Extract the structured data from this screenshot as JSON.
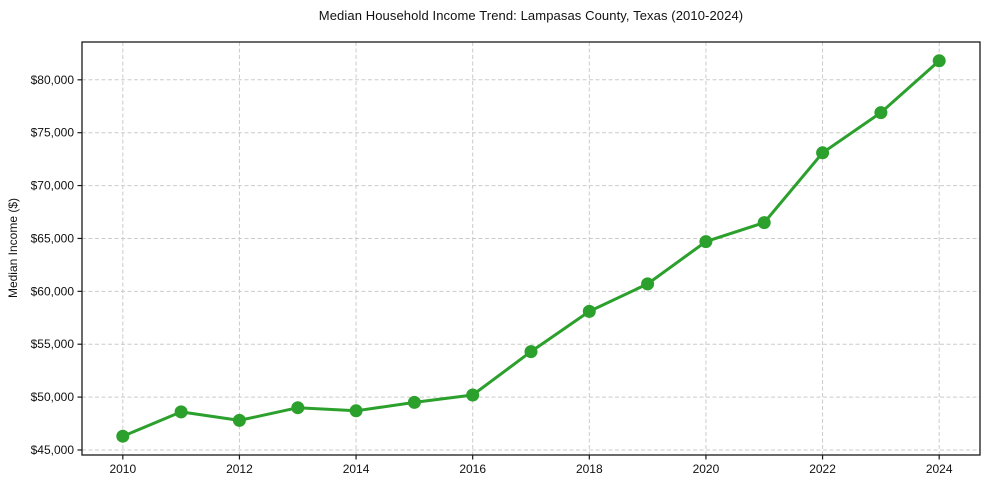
{
  "page": {
    "background": "#ffffff"
  },
  "chart_data": {
    "type": "line",
    "title": "Median Household Income Trend: Lampasas County, Texas (2010-2024)",
    "xlabel": "",
    "ylabel": "Median Income ($)",
    "series_name": "Median household income",
    "x": [
      2010,
      2011,
      2012,
      2013,
      2014,
      2015,
      2016,
      2017,
      2018,
      2019,
      2020,
      2021,
      2022,
      2023,
      2024
    ],
    "values": [
      46300,
      48600,
      47800,
      49000,
      48700,
      49500,
      50200,
      54300,
      58100,
      60700,
      64700,
      66500,
      73100,
      76900,
      81800
    ],
    "xlim": [
      2009.3,
      2024.7
    ],
    "ylim": [
      44525,
      83575
    ],
    "xticks": {
      "values": [
        2010,
        2012,
        2014,
        2016,
        2018,
        2020,
        2022,
        2024
      ],
      "labels": [
        "2010",
        "2012",
        "2014",
        "2016",
        "2018",
        "2020",
        "2022",
        "2024"
      ]
    },
    "yticks": {
      "values": [
        45000,
        50000,
        55000,
        60000,
        65000,
        70000,
        75000,
        80000
      ],
      "labels": [
        "$45,000",
        "$50,000",
        "$55,000",
        "$60,000",
        "$65,000",
        "$70,000",
        "$75,000",
        "$80,000"
      ]
    },
    "grid": {
      "show": true,
      "style": "dashed",
      "color": "#cbcbcb"
    },
    "legend": "none",
    "line_color": "#2ca02c",
    "marker": "circle",
    "marker_radius": 6.5,
    "line_width": 3,
    "axis_color": "#1a1a1a",
    "text_color": "#111111"
  }
}
